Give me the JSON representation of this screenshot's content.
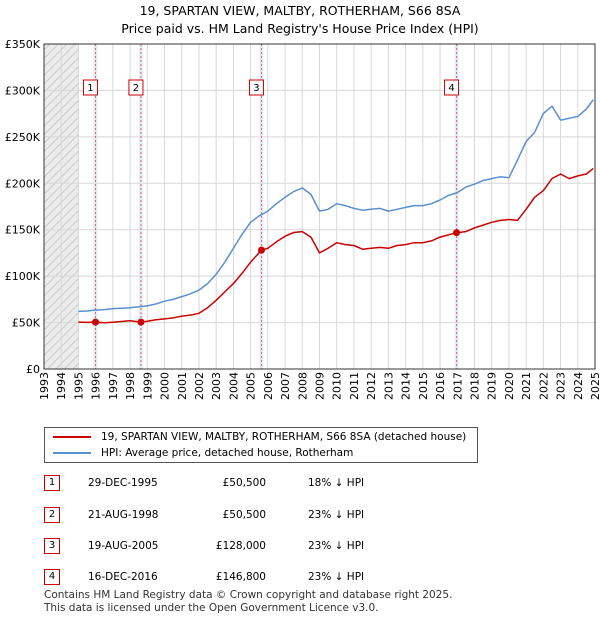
{
  "header": {
    "title_line1": "19, SPARTAN VIEW, MALTBY, ROTHERHAM, S66 8SA",
    "title_line2": "Price paid vs. HM Land Registry's House Price Index (HPI)"
  },
  "colors": {
    "red": "#cc0000",
    "blue": "#5b8fd0",
    "grid": "#d8d8d8",
    "shade": "#ececec",
    "hatch": "#c0c0c0",
    "highlight": "#dde6f5"
  },
  "chart_data": {
    "type": "line",
    "title": "19, SPARTAN VIEW, MALTBY, ROTHERHAM, S66 8SA",
    "subtitle": "Price paid vs. HM Land Registry's House Price Index (HPI)",
    "xlabel": "",
    "ylabel": "",
    "xlim": [
      1993,
      2025
    ],
    "ylim": [
      0,
      350000
    ],
    "grid": true,
    "data_start": 1995,
    "y_ticks": [
      0,
      50000,
      100000,
      150000,
      200000,
      250000,
      300000,
      350000
    ],
    "y_tick_labels": [
      "£0",
      "£50K",
      "£100K",
      "£150K",
      "£200K",
      "£250K",
      "£300K",
      "£350K"
    ],
    "x_tick_labels": [
      "1993",
      "1994",
      "1995",
      "1996",
      "1997",
      "1998",
      "1999",
      "2000",
      "2001",
      "2002",
      "2003",
      "2004",
      "2005",
      "2006",
      "2007",
      "2008",
      "2009",
      "2010",
      "2011",
      "2012",
      "2013",
      "2014",
      "2015",
      "2016",
      "2017",
      "2018",
      "2019",
      "2020",
      "2021",
      "2022",
      "2023",
      "2024",
      "2025"
    ],
    "legend_position": "below",
    "series": [
      {
        "name": "19, SPARTAN VIEW, MALTBY, ROTHERHAM, S66 8SA (detached house)",
        "color": "#cc0000",
        "x": [
          1995.0,
          1995.5,
          1995.99,
          1996.5,
          1997.0,
          1997.5,
          1998.0,
          1998.63,
          1999.0,
          1999.5,
          2000.0,
          2000.5,
          2001.0,
          2001.5,
          2002.0,
          2002.5,
          2003.0,
          2003.5,
          2004.0,
          2004.5,
          2005.0,
          2005.63,
          2006.0,
          2006.5,
          2007.0,
          2007.5,
          2008.0,
          2008.5,
          2009.0,
          2009.5,
          2010.0,
          2010.5,
          2011.0,
          2011.5,
          2012.0,
          2012.5,
          2013.0,
          2013.5,
          2014.0,
          2014.5,
          2015.0,
          2015.5,
          2016.0,
          2016.96,
          2017.5,
          2018.0,
          2018.5,
          2019.0,
          2019.5,
          2020.0,
          2020.5,
          2021.0,
          2021.5,
          2022.0,
          2022.5,
          2023.0,
          2023.5,
          2024.0,
          2024.5,
          2024.9
        ],
        "values": [
          50500,
          50200,
          50500,
          49800,
          50400,
          51200,
          52000,
          50500,
          51500,
          53000,
          54000,
          55000,
          57000,
          58000,
          60000,
          66000,
          74000,
          83000,
          92000,
          103000,
          115000,
          128000,
          130000,
          137000,
          143000,
          147000,
          148000,
          142000,
          125000,
          130000,
          136000,
          134000,
          133000,
          129000,
          130000,
          131000,
          130000,
          133000,
          134000,
          136000,
          136000,
          138000,
          142000,
          146800,
          148000,
          152000,
          155000,
          158000,
          160000,
          161000,
          160000,
          172000,
          185000,
          192000,
          205000,
          210000,
          205000,
          208000,
          210000,
          216000
        ]
      },
      {
        "name": "HPI: Average price, detached house, Rotherham",
        "color": "#5b8fd0",
        "x": [
          1995.0,
          1995.5,
          1996.0,
          1996.5,
          1997.0,
          1997.5,
          1998.0,
          1998.5,
          1999.0,
          1999.5,
          2000.0,
          2000.5,
          2001.0,
          2001.5,
          2002.0,
          2002.5,
          2003.0,
          2003.5,
          2004.0,
          2004.5,
          2005.0,
          2005.5,
          2006.0,
          2006.5,
          2007.0,
          2007.5,
          2008.0,
          2008.5,
          2009.0,
          2009.5,
          2010.0,
          2010.5,
          2011.0,
          2011.5,
          2012.0,
          2012.5,
          2013.0,
          2013.5,
          2014.0,
          2014.5,
          2015.0,
          2015.5,
          2016.0,
          2016.5,
          2017.0,
          2017.5,
          2018.0,
          2018.5,
          2019.0,
          2019.5,
          2020.0,
          2020.5,
          2021.0,
          2021.5,
          2022.0,
          2022.5,
          2023.0,
          2023.5,
          2024.0,
          2024.5,
          2024.9
        ],
        "values": [
          62000,
          62500,
          63500,
          64000,
          65000,
          65500,
          66000,
          67000,
          68000,
          70000,
          73000,
          75000,
          78000,
          81000,
          85000,
          92000,
          102000,
          115000,
          130000,
          145000,
          158000,
          165000,
          170000,
          178000,
          185000,
          191000,
          195000,
          188000,
          170000,
          172000,
          178000,
          176000,
          173000,
          171000,
          172000,
          173000,
          170000,
          172000,
          174000,
          176000,
          176000,
          178000,
          182000,
          187000,
          190000,
          196000,
          199000,
          203000,
          205000,
          207000,
          206000,
          225000,
          245000,
          255000,
          275000,
          283000,
          268000,
          270000,
          272000,
          280000,
          290000
        ]
      }
    ],
    "sales": [
      {
        "label": "1",
        "x": 1995.99,
        "price": 50500
      },
      {
        "label": "2",
        "x": 1998.63,
        "price": 50500
      },
      {
        "label": "3",
        "x": 2005.63,
        "price": 128000
      },
      {
        "label": "4",
        "x": 2016.96,
        "price": 146800
      }
    ]
  },
  "legend": {
    "items": [
      {
        "label": "19, SPARTAN VIEW, MALTBY, ROTHERHAM, S66 8SA (detached house)"
      },
      {
        "label": "HPI: Average price, detached house, Rotherham"
      }
    ]
  },
  "table": {
    "rows": [
      {
        "num": "1",
        "date": "29-DEC-1995",
        "price": "£50,500",
        "hpi": "18% ↓ HPI"
      },
      {
        "num": "2",
        "date": "21-AUG-1998",
        "price": "£50,500",
        "hpi": "23% ↓ HPI"
      },
      {
        "num": "3",
        "date": "19-AUG-2005",
        "price": "£128,000",
        "hpi": "23% ↓ HPI"
      },
      {
        "num": "4",
        "date": "16-DEC-2016",
        "price": "£146,800",
        "hpi": "23% ↓ HPI"
      }
    ]
  },
  "footer": {
    "line1": "Contains HM Land Registry data © Crown copyright and database right 2025.",
    "line2": "This data is licensed under the Open Government Licence v3.0."
  }
}
